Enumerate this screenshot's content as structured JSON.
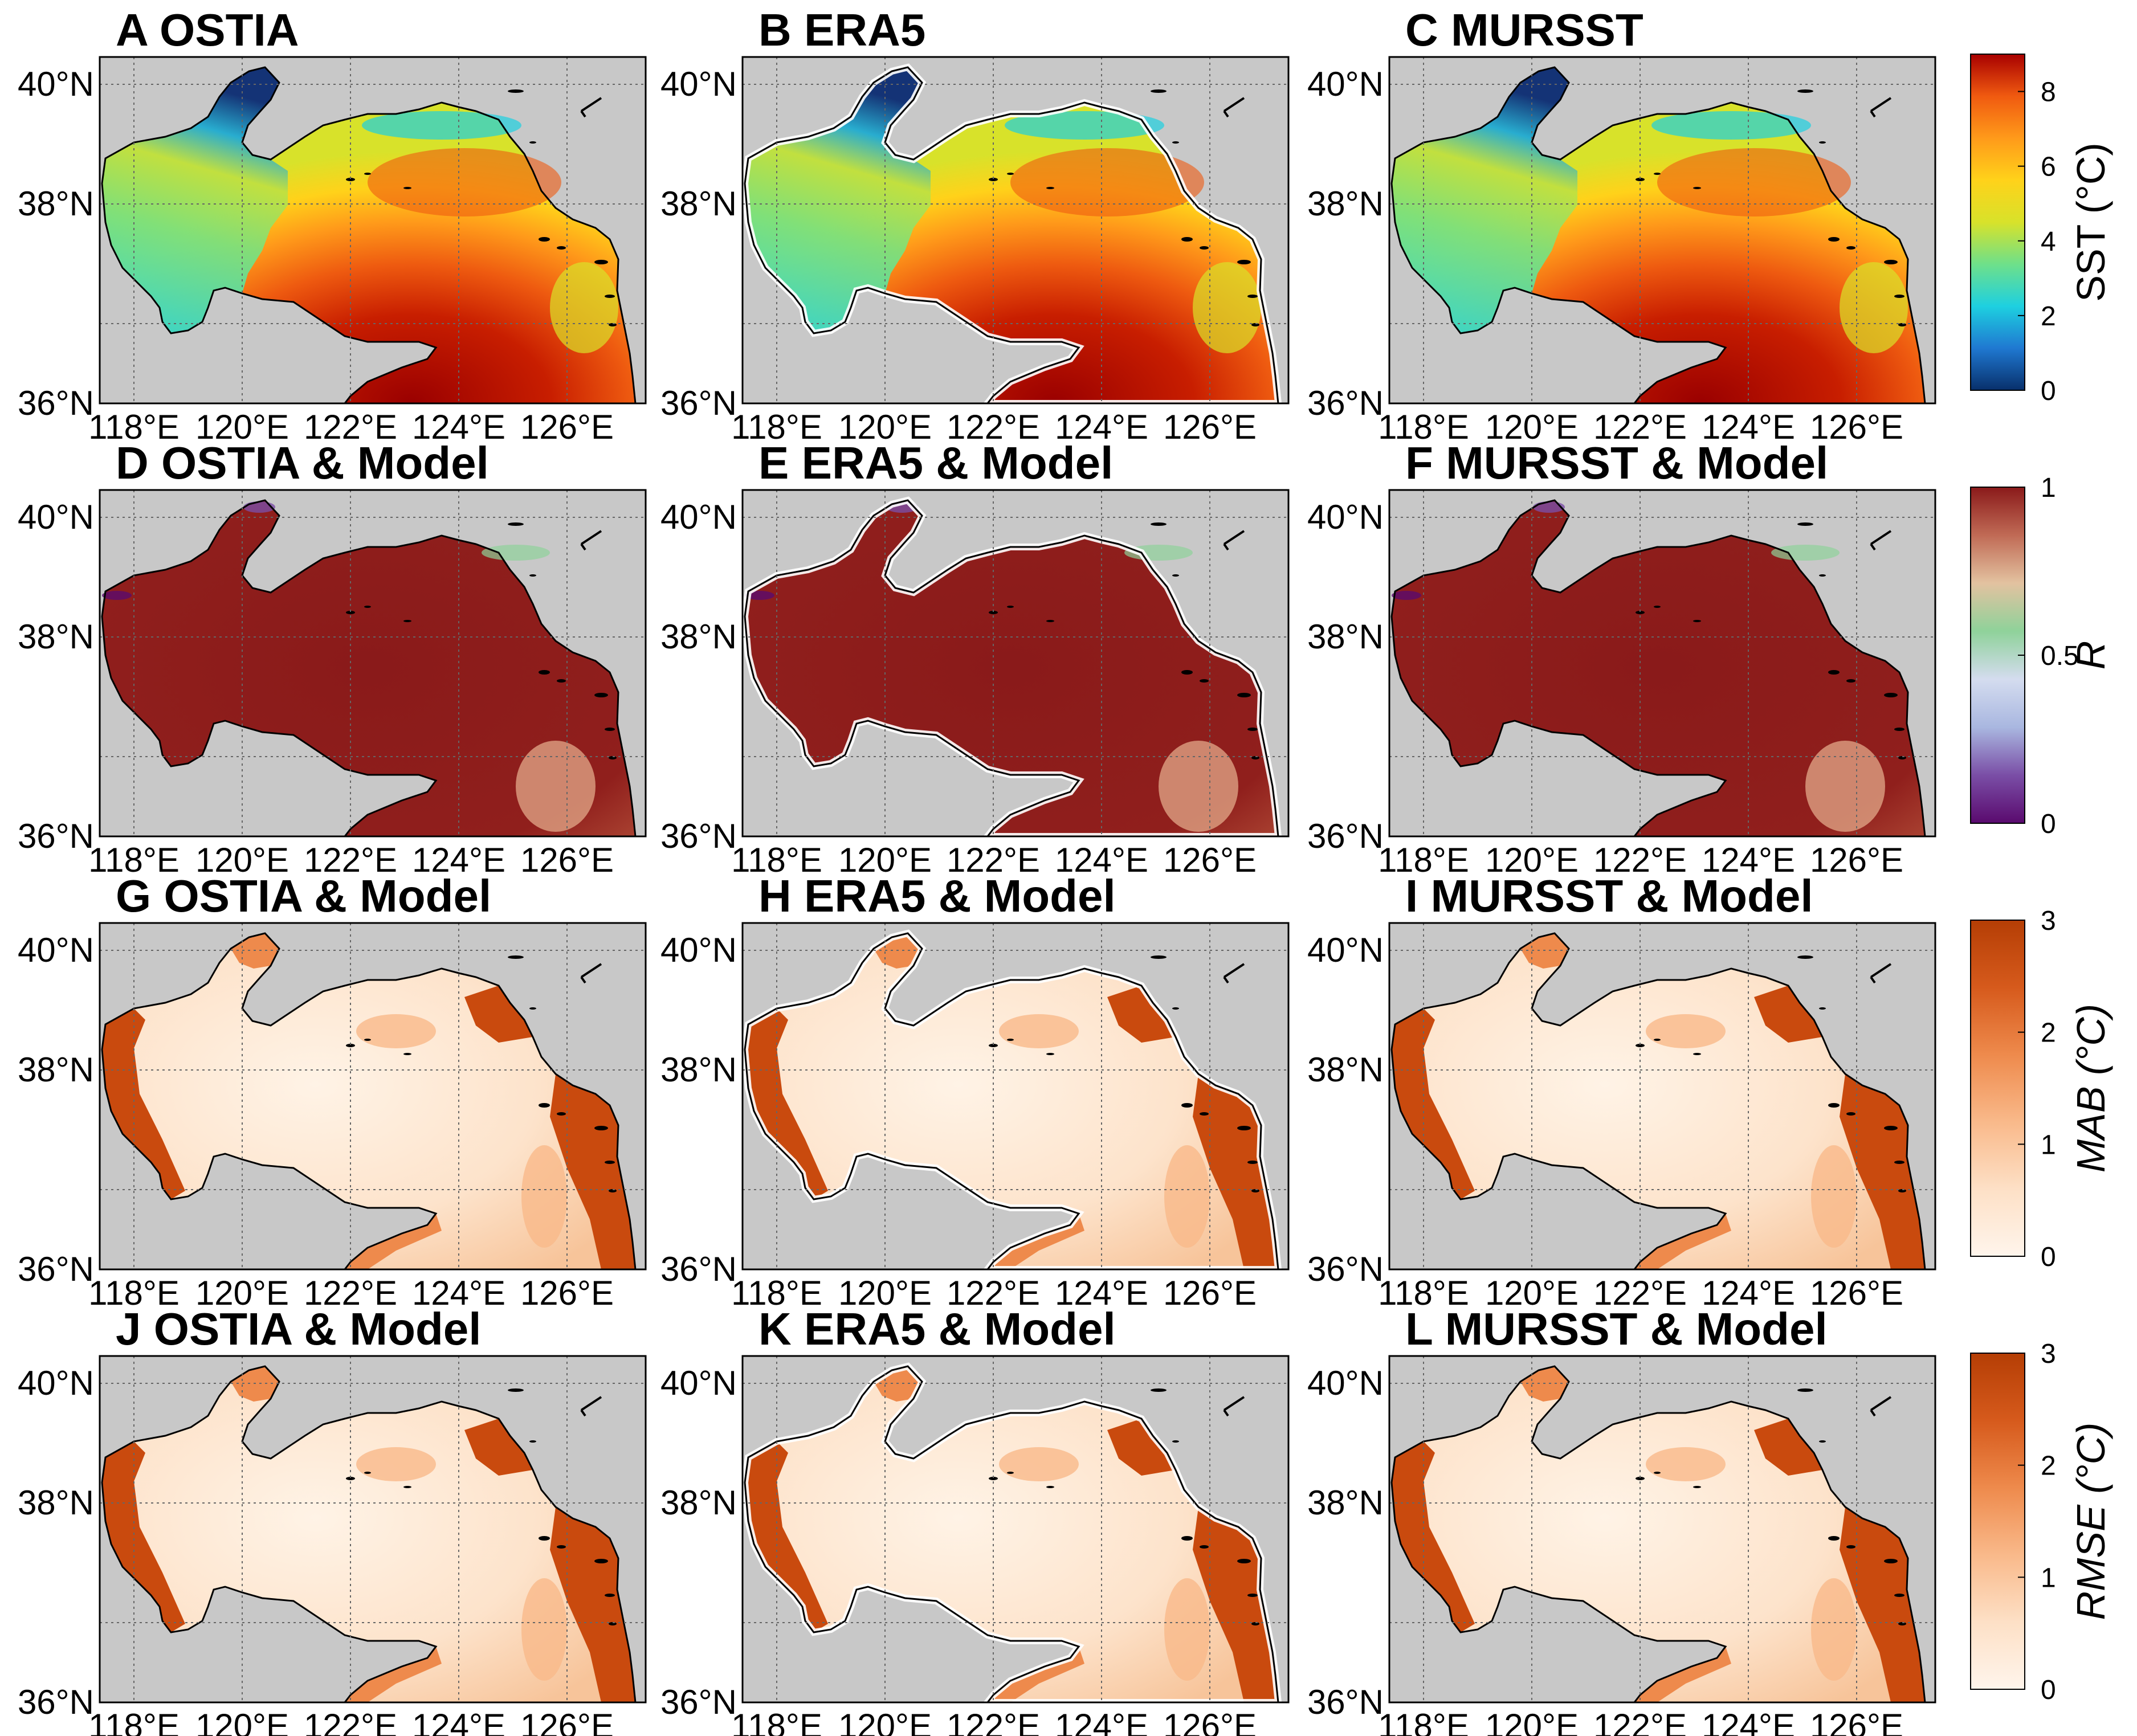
{
  "figure": {
    "lat_ticks": [
      "36°N",
      "38°N",
      "40°N"
    ],
    "lon_ticks": [
      "118°E",
      "120°E",
      "122°E",
      "124°E",
      "126°E"
    ],
    "panels": [
      {
        "title": "A OSTIA",
        "variable": "sst"
      },
      {
        "title": "B ERA5",
        "variable": "sst"
      },
      {
        "title": "C MURSST",
        "variable": "sst"
      },
      {
        "title": "D OSTIA & Model",
        "variable": "r"
      },
      {
        "title": "E ERA5 & Model",
        "variable": "r"
      },
      {
        "title": "F MURSST & Model",
        "variable": "r"
      },
      {
        "title": "G OSTIA & Model",
        "variable": "mab"
      },
      {
        "title": "H ERA5 & Model",
        "variable": "mab"
      },
      {
        "title": "I MURSST & Model",
        "variable": "mab"
      },
      {
        "title": "J OSTIA & Model",
        "variable": "rmse"
      },
      {
        "title": "K ERA5 & Model",
        "variable": "rmse"
      },
      {
        "title": "L MURSST & Model",
        "variable": "rmse"
      }
    ],
    "colorbars": [
      {
        "label": "SST (°C)",
        "ticks": [
          "0",
          "2",
          "4",
          "6",
          "8"
        ],
        "range": [
          0,
          9
        ],
        "colors": [
          "#08306b",
          "#1f78d1",
          "#1ed0e0",
          "#6ee08a",
          "#d8e22a",
          "#ffd21a",
          "#ff9a1a",
          "#f05a10",
          "#a80000"
        ]
      },
      {
        "label": "R",
        "ticks": [
          "0",
          "0.5",
          "1"
        ],
        "range": [
          0,
          1
        ],
        "colors": [
          "#5a0a6e",
          "#7a4ea6",
          "#a9b7e0",
          "#d4dcef",
          "#8fd29a",
          "#e3c2a0",
          "#c06a55",
          "#8a1a1a"
        ]
      },
      {
        "label": "MAB (°C)",
        "ticks": [
          "0",
          "1",
          "2",
          "3"
        ],
        "range": [
          0,
          3
        ],
        "colors": [
          "#fff5ec",
          "#fde0c6",
          "#f9b98a",
          "#ee8a4c",
          "#d65a1c",
          "#b53e05"
        ]
      },
      {
        "label": "RMSE (°C)",
        "ticks": [
          "0",
          "1",
          "2",
          "3"
        ],
        "range": [
          0,
          3
        ],
        "colors": [
          "#fff5ec",
          "#fde0c6",
          "#f9b98a",
          "#ee8a4c",
          "#d65a1c",
          "#b53e05"
        ]
      }
    ],
    "colors": {
      "land": "#c8c8c8",
      "coast": "#000000",
      "grid": "#666666"
    }
  }
}
